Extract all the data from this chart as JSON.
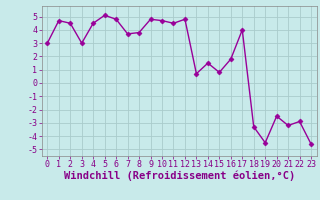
{
  "x": [
    0,
    1,
    2,
    3,
    4,
    5,
    6,
    7,
    8,
    9,
    10,
    11,
    12,
    13,
    14,
    15,
    16,
    17,
    18,
    19,
    20,
    21,
    22,
    23
  ],
  "y": [
    3.0,
    4.7,
    4.5,
    3.0,
    4.5,
    5.1,
    4.8,
    3.7,
    3.8,
    4.8,
    4.7,
    4.5,
    4.8,
    0.7,
    1.5,
    0.8,
    1.8,
    4.0,
    -3.3,
    -4.5,
    -2.5,
    -3.2,
    -2.9,
    -4.6
  ],
  "line_color": "#990099",
  "marker": "D",
  "marker_size": 2.5,
  "bg_color": "#c8eaea",
  "grid_color": "#aacccc",
  "xlabel": "Windchill (Refroidissement éolien,°C)",
  "xlabel_fontsize": 7.5,
  "xlabel_color": "#880088",
  "xlabel_bold": true,
  "ylim": [
    -5.5,
    5.8
  ],
  "xlim": [
    -0.5,
    23.5
  ],
  "yticks": [
    -5,
    -4,
    -3,
    -2,
    -1,
    0,
    1,
    2,
    3,
    4,
    5
  ],
  "xticks": [
    0,
    1,
    2,
    3,
    4,
    5,
    6,
    7,
    8,
    9,
    10,
    11,
    12,
    13,
    14,
    15,
    16,
    17,
    18,
    19,
    20,
    21,
    22,
    23
  ],
  "tick_fontsize": 6.0,
  "tick_color": "#880088",
  "line_width": 1.0
}
